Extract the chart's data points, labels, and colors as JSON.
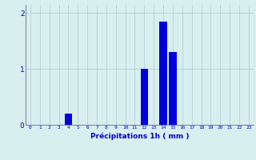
{
  "hours": [
    0,
    1,
    2,
    3,
    4,
    5,
    6,
    7,
    8,
    9,
    10,
    11,
    12,
    13,
    14,
    15,
    16,
    17,
    18,
    19,
    20,
    21,
    22,
    23
  ],
  "values": [
    0,
    0,
    0,
    0,
    0.2,
    0,
    0,
    0,
    0,
    0,
    0,
    0,
    1.0,
    0,
    1.85,
    1.3,
    0,
    0,
    0,
    0,
    0,
    0,
    0,
    0
  ],
  "bar_color": "#0000dd",
  "background_color": "#d8eff0",
  "grid_color": "#aacccc",
  "xlabel": "Précipitations 1h ( mm )",
  "xlabel_color": "#0000cc",
  "tick_color": "#0000cc",
  "axis_color": "#888899",
  "ylim": [
    0,
    2.15
  ],
  "yticks": [
    0,
    1,
    2
  ],
  "xlim": [
    -0.5,
    23.5
  ]
}
